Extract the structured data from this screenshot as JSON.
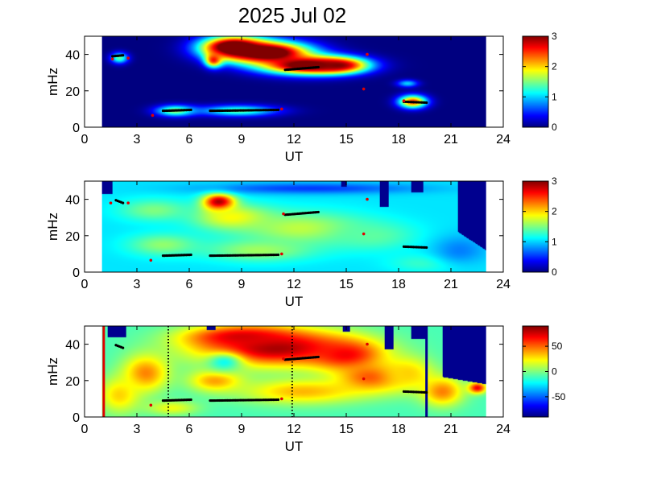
{
  "title": "2025 Jul 02",
  "colors": {
    "background": "#00008f",
    "marker_black": "#000000",
    "marker_red": "#e00000"
  },
  "chart_data": [
    {
      "type": "heatmap",
      "xlabel": "UT",
      "ylabel": "mHz",
      "xlim": [
        0,
        24
      ],
      "ylim": [
        0,
        50
      ],
      "xticks": [
        0,
        3,
        6,
        9,
        12,
        15,
        18,
        21,
        24
      ],
      "yticks": [
        0,
        20,
        40
      ],
      "data_range_x": [
        1,
        23
      ],
      "colorbar": {
        "min": 0,
        "max": 3,
        "ticks": [
          0,
          1,
          2,
          3
        ]
      },
      "background_value": 0,
      "blobs": [
        {
          "x": 8.5,
          "y": 44,
          "rx": 1.8,
          "ry": 6,
          "value": 3.6
        },
        {
          "x": 10.5,
          "y": 41,
          "rx": 2.4,
          "ry": 6,
          "value": 3.6
        },
        {
          "x": 12.8,
          "y": 34,
          "rx": 2.6,
          "ry": 5,
          "value": 3.4
        },
        {
          "x": 14.5,
          "y": 34,
          "rx": 1.6,
          "ry": 4,
          "value": 3.0
        },
        {
          "x": 7.4,
          "y": 37,
          "rx": 0.5,
          "ry": 4,
          "value": 2.6
        },
        {
          "x": 5.2,
          "y": 9,
          "rx": 1.1,
          "ry": 3,
          "value": 1.6
        },
        {
          "x": 8.8,
          "y": 9,
          "rx": 2.2,
          "ry": 3,
          "value": 1.4
        },
        {
          "x": 18.8,
          "y": 14,
          "rx": 0.8,
          "ry": 3.5,
          "value": 2.5
        },
        {
          "x": 2.0,
          "y": 38,
          "rx": 0.5,
          "ry": 3,
          "value": 1.4
        },
        {
          "x": 18.5,
          "y": 24,
          "rx": 0.6,
          "ry": 2,
          "value": 1.0
        }
      ],
      "black_markers": [
        {
          "x": [
            1.6,
            2.2
          ],
          "y": [
            39,
            39.5
          ]
        },
        {
          "x": [
            4.5,
            6.1
          ],
          "y": [
            9,
            9.5
          ]
        },
        {
          "x": [
            7.2,
            11.1
          ],
          "y": [
            9,
            9.5
          ]
        },
        {
          "x": [
            11.5,
            13.4
          ],
          "y": [
            31.5,
            33
          ]
        },
        {
          "x": [
            18.3,
            19.6
          ],
          "y": [
            14,
            13.5
          ]
        }
      ],
      "red_markers": [
        {
          "x": 1.6,
          "y": 37.5
        },
        {
          "x": 2.5,
          "y": 38
        },
        {
          "x": 3.9,
          "y": 6.5
        },
        {
          "x": 11.3,
          "y": 10
        },
        {
          "x": 16.2,
          "y": 40
        },
        {
          "x": 16.0,
          "y": 21
        },
        {
          "x": 18.3,
          "y": 14.5
        }
      ]
    },
    {
      "type": "heatmap",
      "xlabel": "UT",
      "ylabel": "mHz",
      "xlim": [
        0,
        24
      ],
      "ylim": [
        0,
        50
      ],
      "xticks": [
        0,
        3,
        6,
        9,
        12,
        15,
        18,
        21,
        24
      ],
      "yticks": [
        0,
        20,
        40
      ],
      "data_range_x": [
        1,
        23
      ],
      "colorbar": {
        "min": 0,
        "max": 3,
        "ticks": [
          0,
          1,
          2,
          3
        ]
      },
      "background_value": 1.05,
      "blobs": [
        {
          "x": 7.7,
          "y": 38,
          "rx": 0.9,
          "ry": 5,
          "value": 3.2
        },
        {
          "x": 8.5,
          "y": 30,
          "rx": 2.2,
          "ry": 7,
          "value": 1.9
        },
        {
          "x": 12.5,
          "y": 24,
          "rx": 3.5,
          "ry": 9,
          "value": 1.7
        },
        {
          "x": 4.5,
          "y": 15,
          "rx": 2.0,
          "ry": 6,
          "value": 1.55
        },
        {
          "x": 10.0,
          "y": 12,
          "rx": 3.0,
          "ry": 6,
          "value": 1.6
        },
        {
          "x": 16.5,
          "y": 20,
          "rx": 2.5,
          "ry": 8,
          "value": 1.4
        },
        {
          "x": 4.0,
          "y": 34,
          "rx": 2.0,
          "ry": 6,
          "value": 1.5
        },
        {
          "x": 19.5,
          "y": 5,
          "rx": 2.0,
          "ry": 5,
          "value": 1.3
        },
        {
          "x": 13.0,
          "y": 46,
          "rx": 6.0,
          "ry": 3,
          "value": 0.55
        },
        {
          "x": 21.5,
          "y": 12,
          "rx": 1.5,
          "ry": 8,
          "value": 0.75
        }
      ],
      "masks": [
        {
          "x": [
            21.4,
            23.0
          ],
          "y_top": 50,
          "y_bottom": [
            22,
            12
          ]
        },
        {
          "x": [
            16.9,
            17.4
          ],
          "y_top": 50,
          "y_bottom": [
            36,
            36
          ]
        },
        {
          "x": [
            18.7,
            19.4
          ],
          "y_top": 50,
          "y_bottom": [
            44,
            44
          ]
        },
        {
          "x": [
            1.0,
            1.6
          ],
          "y_top": 50,
          "y_bottom": [
            43,
            43
          ]
        },
        {
          "x": [
            14.7,
            15.0
          ],
          "y_top": 50,
          "y_bottom": [
            47,
            47
          ]
        }
      ],
      "black_markers": [
        {
          "x": [
            1.8,
            2.2
          ],
          "y": [
            39.5,
            38
          ]
        },
        {
          "x": [
            4.5,
            6.1
          ],
          "y": [
            9,
            9.5
          ]
        },
        {
          "x": [
            7.2,
            11.1
          ],
          "y": [
            9,
            9.5
          ]
        },
        {
          "x": [
            11.5,
            13.4
          ],
          "y": [
            31.5,
            33
          ]
        },
        {
          "x": [
            18.3,
            19.6
          ],
          "y": [
            14,
            13.5
          ]
        }
      ],
      "red_markers": [
        {
          "x": 1.5,
          "y": 38
        },
        {
          "x": 2.5,
          "y": 38
        },
        {
          "x": 3.8,
          "y": 6.5
        },
        {
          "x": 11.3,
          "y": 10
        },
        {
          "x": 16.2,
          "y": 40
        },
        {
          "x": 16.0,
          "y": 21
        },
        {
          "x": 11.4,
          "y": 32
        }
      ]
    },
    {
      "type": "heatmap",
      "xlabel": "UT",
      "ylabel": "mHz",
      "xlim": [
        0,
        24
      ],
      "ylim": [
        0,
        50
      ],
      "xticks": [
        0,
        3,
        6,
        9,
        12,
        15,
        18,
        21,
        24
      ],
      "yticks": [
        0,
        20,
        40
      ],
      "data_range_x": [
        1,
        23
      ],
      "colorbar": {
        "min": -90,
        "max": 90,
        "ticks": [
          50,
          0,
          -50
        ],
        "tick_labels": [
          "50",
          "0",
          "-50"
        ]
      },
      "background_value": -10,
      "blobs": [
        {
          "x": 11.0,
          "y": 38,
          "rx": 4.5,
          "ry": 10,
          "value": 85
        },
        {
          "x": 9.0,
          "y": 44,
          "rx": 3.0,
          "ry": 6,
          "value": 75
        },
        {
          "x": 15.0,
          "y": 34,
          "rx": 2.0,
          "ry": 8,
          "value": 70
        },
        {
          "x": 7.5,
          "y": 20,
          "rx": 1.5,
          "ry": 6,
          "value": 40
        },
        {
          "x": 3.5,
          "y": 24,
          "rx": 1.3,
          "ry": 10,
          "value": 45
        },
        {
          "x": 12.5,
          "y": 14,
          "rx": 3.5,
          "ry": 7,
          "value": 35
        },
        {
          "x": 16.5,
          "y": 22,
          "rx": 2.0,
          "ry": 8,
          "value": 55
        },
        {
          "x": 18.5,
          "y": 24,
          "rx": 1.5,
          "ry": 9,
          "value": 30
        },
        {
          "x": 2.0,
          "y": 12,
          "rx": 1.2,
          "ry": 10,
          "value": 30
        },
        {
          "x": 5.0,
          "y": 5,
          "rx": 1.5,
          "ry": 4,
          "value": 20
        },
        {
          "x": 20.5,
          "y": 14,
          "rx": 1.2,
          "ry": 8,
          "value": 45
        },
        {
          "x": 22.5,
          "y": 16,
          "rx": 0.5,
          "ry": 3,
          "value": 70
        },
        {
          "x": 8.0,
          "y": 30,
          "rx": 1.0,
          "ry": 5,
          "value": -20
        }
      ],
      "masks": [
        {
          "x": [
            20.5,
            23.0
          ],
          "y_top": 50,
          "y_bottom": [
            22,
            18
          ]
        },
        {
          "x": [
            1.3,
            2.4
          ],
          "y_top": 50,
          "y_bottom": [
            44,
            44
          ]
        },
        {
          "x": [
            17.2,
            17.7
          ],
          "y_top": 50,
          "y_bottom": [
            37,
            37
          ]
        },
        {
          "x": [
            18.7,
            19.6
          ],
          "y_top": 50,
          "y_bottom": [
            43,
            43
          ]
        },
        {
          "x": [
            14.8,
            15.2
          ],
          "y_top": 50,
          "y_bottom": [
            47,
            47
          ]
        },
        {
          "x": [
            7.0,
            7.5
          ],
          "y_top": 50,
          "y_bottom": [
            48,
            48
          ]
        }
      ],
      "vertical_lines": [
        {
          "x": 1.1,
          "color": "#e00000",
          "style": "solid"
        },
        {
          "x": 19.6,
          "color": "#00008f",
          "style": "solid"
        },
        {
          "x": 4.8,
          "color": "#000000",
          "style": "dotted"
        },
        {
          "x": 11.9,
          "color": "#000000",
          "style": "dotted"
        }
      ],
      "black_markers": [
        {
          "x": [
            1.8,
            2.2
          ],
          "y": [
            39.5,
            38
          ]
        },
        {
          "x": [
            4.5,
            6.1
          ],
          "y": [
            9,
            9.5
          ]
        },
        {
          "x": [
            7.2,
            11.1
          ],
          "y": [
            9,
            9.5
          ]
        },
        {
          "x": [
            11.5,
            13.4
          ],
          "y": [
            31.5,
            33
          ]
        },
        {
          "x": [
            18.3,
            19.6
          ],
          "y": [
            14,
            13.5
          ]
        }
      ],
      "red_markers": [
        {
          "x": 3.8,
          "y": 6.5
        },
        {
          "x": 11.3,
          "y": 10
        },
        {
          "x": 16.2,
          "y": 40
        },
        {
          "x": 16.0,
          "y": 21
        },
        {
          "x": 11.4,
          "y": 32
        }
      ]
    }
  ]
}
